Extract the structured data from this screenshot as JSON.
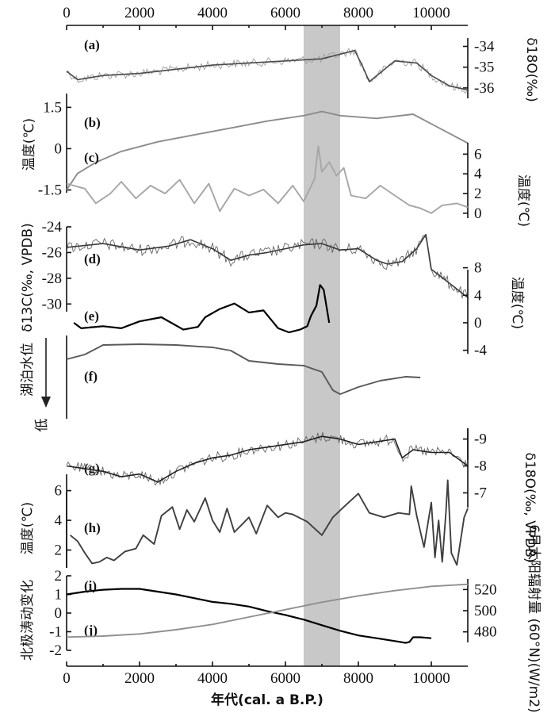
{
  "chart_data": {
    "type": "line",
    "x_axis": {
      "label": "年代(cal. a B.P.)",
      "range": [
        0,
        11000
      ],
      "ticks": [
        0,
        2000,
        4000,
        6000,
        8000,
        10000
      ],
      "tick_labels": [
        "0",
        "2000",
        "4000",
        "6000",
        "8000",
        "10000"
      ],
      "top_ticks_mirrored": true
    },
    "highlight_band": {
      "x_from": 6500,
      "x_to": 7500,
      "color": "#c8c8c8"
    },
    "panels": [
      {
        "id": "a",
        "label": "(a)",
        "axis_side": "right",
        "ylabel": "δ18O(‰)",
        "range": [
          -36.5,
          -33.6
        ],
        "ticks": [
          -34,
          -35,
          -36
        ],
        "tick_labels": [
          "-34",
          "-35",
          "-36"
        ],
        "series": [
          {
            "color": "#9a9a9a",
            "noisy": true,
            "x": [
              0,
              300,
              1000,
              2000,
              3000,
              4000,
              5000,
              6000,
              7000,
              7900,
              8100,
              8300,
              9000,
              9600,
              10000,
              10500,
              11000
            ],
            "y": [
              -35.2,
              -35.6,
              -35.4,
              -35.3,
              -35.1,
              -34.9,
              -34.8,
              -34.7,
              -34.6,
              -34.2,
              -34.9,
              -35.7,
              -34.7,
              -34.8,
              -35.4,
              -35.9,
              -36.1
            ]
          }
        ]
      },
      {
        "id": "b",
        "label": "(b)",
        "axis_side": "left",
        "ylabel": "温度(℃)",
        "range": [
          -1.6,
          2.0
        ],
        "ticks": [
          1.5,
          0,
          -1.5
        ],
        "tick_labels": [
          "1.5",
          "0",
          "-1.5"
        ],
        "series": [
          {
            "color": "#8c8c8c",
            "noisy": false,
            "x": [
              0,
              300,
              800,
              1500,
              2500,
              3500,
              4500,
              5500,
              6500,
              7000,
              7500,
              8500,
              9500,
              10000,
              10500,
              11000
            ],
            "y": [
              -1.5,
              -0.9,
              -0.5,
              -0.1,
              0.25,
              0.5,
              0.75,
              1.0,
              1.2,
              1.35,
              1.2,
              1.1,
              1.25,
              0.9,
              0.55,
              0.2
            ]
          }
        ]
      },
      {
        "id": "c",
        "label": "(c)",
        "axis_side": "right",
        "ylabel": "温度(℃)",
        "range": [
          -0.5,
          7.8
        ],
        "ticks": [
          6,
          4,
          2,
          0
        ],
        "tick_labels": [
          "6",
          "4",
          "2",
          "0"
        ],
        "series": [
          {
            "color": "#a6a6a6",
            "noisy": false,
            "x": [
              0,
              500,
              800,
              1200,
              1500,
              1900,
              2300,
              2700,
              3100,
              3500,
              3900,
              4200,
              4600,
              5000,
              5400,
              5800,
              6200,
              6500,
              6800,
              6900,
              7000,
              7200,
              7400,
              7600,
              7800,
              8200,
              8600,
              9000,
              9400,
              9700,
              10000,
              10300,
              10700,
              11000
            ],
            "y": [
              3.0,
              2.5,
              1.0,
              2.0,
              3.2,
              1.5,
              2.8,
              2.0,
              3.4,
              1.0,
              3.0,
              0.2,
              2.5,
              1.8,
              2.4,
              1.0,
              2.8,
              1.2,
              3.5,
              6.8,
              4.2,
              5.2,
              3.8,
              4.6,
              1.8,
              1.5,
              2.8,
              1.8,
              0.8,
              0.5,
              0.0,
              0.8,
              1.0,
              0.6
            ]
          }
        ]
      },
      {
        "id": "d",
        "label": "(d)",
        "axis_side": "left",
        "ylabel": "δ13C(‰, VPDB)",
        "range": [
          -30.6,
          -24.0
        ],
        "ticks": [
          -24,
          -26,
          -28,
          -30
        ],
        "tick_labels": [
          "-24",
          "-26",
          "-28",
          "-30"
        ],
        "series": [
          {
            "color": "#3a3a3a",
            "noisy": true,
            "x": [
              0,
              1000,
              2000,
              2800,
              3400,
              4000,
              4500,
              5000,
              5500,
              6000,
              6500,
              7000,
              7500,
              8000,
              8500,
              8800,
              9200,
              9600,
              9850,
              10000,
              10500,
              11000
            ],
            "y": [
              -25.6,
              -25.3,
              -25.8,
              -25.5,
              -25.0,
              -25.7,
              -26.6,
              -26.2,
              -26.0,
              -25.7,
              -25.4,
              -25.3,
              -25.8,
              -25.7,
              -26.6,
              -26.9,
              -26.7,
              -25.7,
              -24.6,
              -27.3,
              -28.4,
              -29.5
            ]
          }
        ]
      },
      {
        "id": "e",
        "label": "(e)",
        "axis_side": "right",
        "ylabel": "温度(℃)",
        "range": [
          -4.5,
          8.3
        ],
        "ticks": [
          8,
          4,
          0,
          -4
        ],
        "tick_labels": [
          "8",
          "4",
          "0",
          "-4"
        ],
        "series": [
          {
            "color": "#000000",
            "noisy": false,
            "x": [
              200,
              400,
              1000,
              1500,
              2000,
              2600,
              3200,
              3600,
              3800,
              4200,
              4600,
              5000,
              5400,
              5800,
              6100,
              6400,
              6600,
              6700,
              6850,
              6950,
              7050,
              7200
            ],
            "y": [
              0.0,
              -0.8,
              -0.5,
              -0.8,
              0.2,
              0.8,
              -1.0,
              -0.6,
              0.8,
              2.0,
              2.8,
              1.5,
              1.8,
              -0.8,
              -1.4,
              -1.0,
              -0.5,
              1.0,
              2.5,
              5.5,
              4.8,
              0.0
            ]
          }
        ]
      },
      {
        "id": "f",
        "label": "(f)",
        "axis_side": "left",
        "ylabel": "湖泊水位",
        "low_label": "低",
        "arrow_down": true,
        "series": [
          {
            "color": "#595959",
            "noisy": false,
            "x": [
              0,
              500,
              1000,
              2000,
              3000,
              4000,
              4500,
              5000,
              5800,
              6500,
              7000,
              7300,
              7500,
              8000,
              8600,
              9300,
              9700
            ],
            "y": [
              25,
              19,
              7,
              6,
              7,
              10,
              14,
              27,
              31,
              33,
              41,
              64,
              69,
              60,
              52,
              47,
              48
            ]
          }
        ]
      },
      {
        "id": "g",
        "label": "(g)",
        "axis_side": "right",
        "ylabel": "δ18O(‰, VPDB)",
        "range": [
          -6.6,
          -9.4
        ],
        "ticks": [
          -9,
          -8,
          -7
        ],
        "tick_labels": [
          "-9",
          "-8",
          "-7"
        ],
        "series": [
          {
            "color": "#222222",
            "noisy": true,
            "x": [
              0,
              500,
              1000,
              1500,
              2000,
              2500,
              3000,
              3500,
              4000,
              4500,
              5000,
              5500,
              6000,
              6500,
              7000,
              7500,
              8000,
              8500,
              9000,
              9200,
              9500,
              10000,
              10500,
              11000
            ],
            "y": [
              -8.0,
              -7.9,
              -7.8,
              -7.6,
              -7.7,
              -7.4,
              -7.8,
              -8.1,
              -8.3,
              -8.4,
              -8.6,
              -8.7,
              -8.8,
              -8.9,
              -9.1,
              -9.0,
              -8.8,
              -8.9,
              -9.0,
              -8.3,
              -8.6,
              -8.5,
              -8.5,
              -8.0
            ]
          }
        ]
      },
      {
        "id": "h",
        "label": "(h)",
        "axis_side": "left",
        "ylabel": "温度(℃)",
        "range": [
          0.8,
          7.1
        ],
        "ticks": [
          6,
          4,
          2
        ],
        "tick_labels": [
          "6",
          "4",
          "2"
        ],
        "series": [
          {
            "color": "#3f3f3f",
            "noisy": false,
            "x": [
              100,
              300,
              500,
              700,
              900,
              1100,
              1300,
              1600,
              1900,
              2100,
              2400,
              2600,
              2900,
              3100,
              3300,
              3500,
              3800,
              4000,
              4200,
              4400,
              4600,
              4800,
              5000,
              5200,
              5500,
              5800,
              6000,
              6200,
              6600,
              7000,
              7300,
              7600,
              8000,
              8300,
              8700,
              9100,
              9400,
              9450,
              9600,
              9800,
              10000,
              10100,
              10200,
              10300,
              10400,
              10450,
              10550,
              10700,
              10900,
              11000
            ],
            "y": [
              3.0,
              2.6,
              1.8,
              1.1,
              1.2,
              1.5,
              1.3,
              1.9,
              2.1,
              3.0,
              2.4,
              4.3,
              4.9,
              3.4,
              4.7,
              3.9,
              5.5,
              4.0,
              3.2,
              4.8,
              3.2,
              3.7,
              4.2,
              3.1,
              5.0,
              4.2,
              4.5,
              4.4,
              3.9,
              3.0,
              4.2,
              4.9,
              5.8,
              4.5,
              4.2,
              4.5,
              4.4,
              6.3,
              4.3,
              2.2,
              5.2,
              1.5,
              4.0,
              1.2,
              4.5,
              6.7,
              1.8,
              1.0,
              4.2,
              4.8
            ]
          }
        ]
      },
      {
        "id": "i",
        "label": "(i)",
        "axis_side": "left",
        "ylabel": "北极涛动变化",
        "range": [
          -2.0,
          2.0
        ],
        "ticks": [
          2,
          1,
          0,
          -1,
          -2
        ],
        "tick_labels": [
          "2",
          "1",
          "0",
          "-1",
          "-2"
        ],
        "series": [
          {
            "color": "#000000",
            "noisy": false,
            "x": [
              0,
              500,
              1000,
              1500,
              2000,
              2500,
              3000,
              3500,
              4000,
              4500,
              5000,
              5500,
              6000,
              6500,
              7000,
              7500,
              8000,
              8500,
              9000,
              9300,
              9400,
              9500,
              9700,
              10000
            ],
            "y": [
              1.0,
              1.15,
              1.25,
              1.3,
              1.3,
              1.15,
              1.0,
              0.8,
              0.6,
              0.5,
              0.35,
              0.1,
              -0.1,
              -0.35,
              -0.65,
              -0.95,
              -1.2,
              -1.35,
              -1.5,
              -1.6,
              -1.55,
              -1.3,
              -1.3,
              -1.35
            ]
          }
        ]
      },
      {
        "id": "j",
        "label": "(j)",
        "axis_side": "right",
        "ylabel": "6月太阳辐射量 (60°N)(W/m2)",
        "range": [
          470,
          530
        ],
        "ticks": [
          520,
          500,
          480
        ],
        "tick_labels": [
          "520",
          "500",
          "480"
        ],
        "series": [
          {
            "color": "#8f8f8f",
            "noisy": false,
            "x": [
              0,
              1000,
              2000,
              3000,
              4000,
              5000,
              6000,
              7000,
              8000,
              9000,
              10000,
              11000
            ],
            "y": [
              475,
              476,
              478,
              482,
              487,
              494,
              501,
              508,
              514,
              519,
              523,
              525
            ]
          }
        ]
      }
    ]
  }
}
